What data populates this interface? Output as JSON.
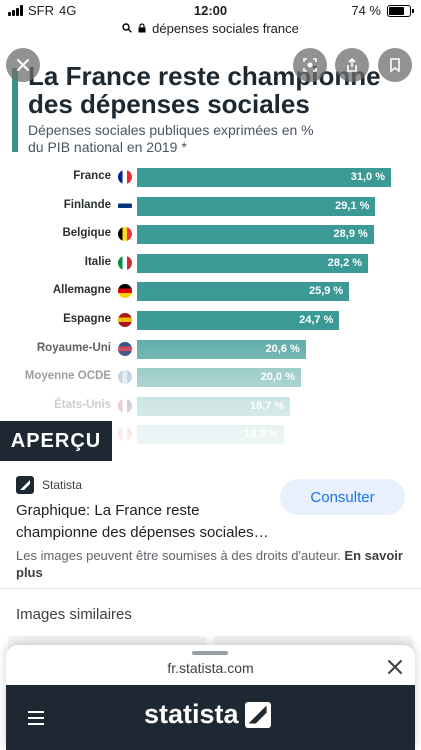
{
  "status_bar": {
    "carrier": "SFR",
    "network": "4G",
    "time": "12:00",
    "battery": "74 %"
  },
  "url_bar": {
    "url": "dépenses sociales france"
  },
  "preview": {
    "title": "La France reste championne des dépenses sociales",
    "subtitle": "Dépenses sociales publiques exprimées en % du PIB national en 2019 *",
    "badge": "APERÇU"
  },
  "chart_data": {
    "type": "bar",
    "title": "La France reste championne des dépenses sociales",
    "subtitle": "Dépenses sociales publiques exprimées en % du PIB national en 2019 *",
    "categories": [
      "France",
      "Finlande",
      "Belgique",
      "Italie",
      "Allemagne",
      "Espagne",
      "Royaume-Uni",
      "Moyenne OCDE",
      "États-Unis",
      ""
    ],
    "values": [
      31.0,
      29.1,
      28.9,
      28.2,
      25.9,
      24.7,
      20.6,
      20.0,
      18.7,
      18.0
    ],
    "labels": [
      "31,0 %",
      "29,1 %",
      "28,9 %",
      "28,2 %",
      "25,9 %",
      "24,7 %",
      "20,6 %",
      "20,0 %",
      "18,7 %",
      "18,0 %"
    ],
    "orientation": "horizontal",
    "bar_color": "#3b9a96"
  },
  "result": {
    "source": "Statista",
    "title": "Graphique: La France reste championne des dépenses sociales…",
    "visit_label": "Consulter",
    "copyright": "Les images peuvent être soumises à des droits d'auteur.",
    "learn_more": "En savoir plus"
  },
  "similar": {
    "heading": "Images similaires"
  },
  "sheet": {
    "url": "fr.statista.com",
    "logo_text": "statista"
  },
  "colors": {
    "accent": "#3b9a96",
    "dark": "#1e2833",
    "link": "#1a73e8"
  }
}
